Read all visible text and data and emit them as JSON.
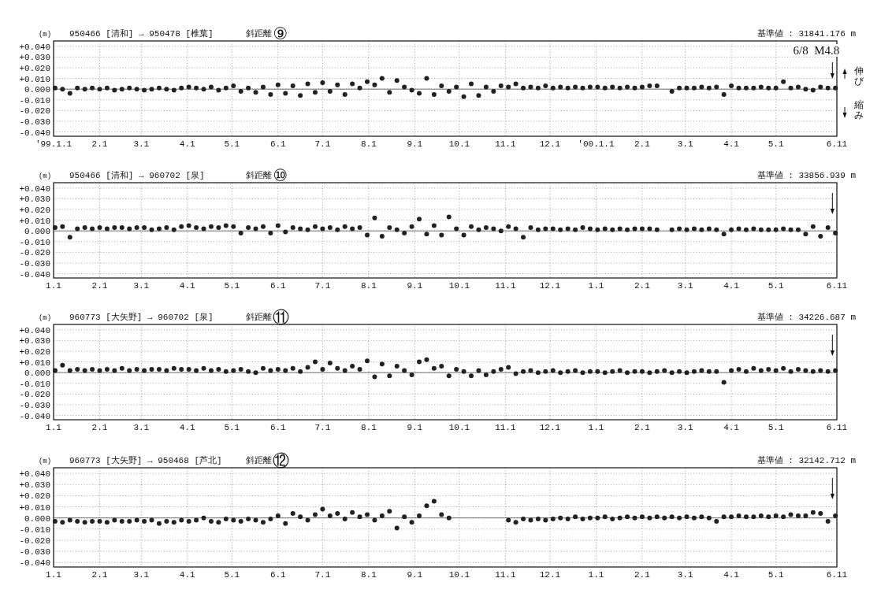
{
  "chart_data": [
    {
      "type": "scatter",
      "title": "950466 [清和] → 950478 [椎葉]",
      "subtitle": "斜距離",
      "ylabel": "(m)",
      "annotations": [
        "⑨",
        "基準値 : 31841.176 m",
        "伸び",
        "縮み"
      ],
      "x": [
        "1999-01-02",
        "1999-01-07",
        "1999-01-12",
        "1999-01-17",
        "1999-01-22",
        "1999-01-27",
        "1999-02-01",
        "1999-02-06",
        "1999-02-11",
        "1999-02-16",
        "1999-02-21",
        "1999-02-26",
        "1999-03-03",
        "1999-03-08",
        "1999-03-13",
        "1999-03-18",
        "1999-03-23",
        "1999-03-28",
        "1999-04-02",
        "1999-04-07",
        "1999-04-12",
        "1999-04-17",
        "1999-04-22",
        "1999-04-27",
        "1999-05-02",
        "1999-05-07",
        "1999-05-12",
        "1999-05-17",
        "1999-05-22",
        "1999-05-27",
        "1999-06-01",
        "1999-06-06",
        "1999-06-11",
        "1999-06-16",
        "1999-06-21",
        "1999-06-26",
        "1999-07-01",
        "1999-07-06",
        "1999-07-11",
        "1999-07-16",
        "1999-07-21",
        "1999-07-26",
        "1999-07-31",
        "1999-08-05",
        "1999-08-10",
        "1999-08-15",
        "1999-08-20",
        "1999-08-25",
        "1999-08-30",
        "1999-09-04",
        "1999-09-09",
        "1999-09-14",
        "1999-09-19",
        "1999-09-24",
        "1999-09-29",
        "1999-10-04",
        "1999-10-09",
        "1999-10-14",
        "1999-10-19",
        "1999-10-24",
        "1999-10-29",
        "1999-11-03",
        "1999-11-08",
        "1999-11-13",
        "1999-11-18",
        "1999-11-23",
        "1999-11-28",
        "1999-12-03",
        "1999-12-08",
        "1999-12-13",
        "1999-12-18",
        "1999-12-23",
        "1999-12-28",
        "2000-01-02",
        "2000-01-07",
        "2000-01-12",
        "2000-01-17",
        "2000-01-22",
        "2000-01-27",
        "2000-02-01",
        "2000-02-06",
        "2000-02-11",
        "2000-02-16",
        "2000-02-21",
        "2000-02-26",
        "2000-03-02",
        "2000-03-07",
        "2000-03-12",
        "2000-03-17",
        "2000-03-22",
        "2000-03-27",
        "2000-04-01",
        "2000-04-06",
        "2000-04-11",
        "2000-04-16",
        "2000-04-21",
        "2000-04-26",
        "2000-05-01",
        "2000-05-06",
        "2000-05-11",
        "2000-05-16",
        "2000-05-21",
        "2000-05-26",
        "2000-05-31",
        "2000-06-05",
        "2000-06-10"
      ],
      "values": [
        0.001,
        0.0,
        -0.004,
        0.001,
        0.0,
        0.001,
        0.0,
        0.001,
        -0.001,
        0.0,
        0.001,
        0.0,
        -0.001,
        0.0,
        0.001,
        0.0,
        -0.001,
        0.001,
        0.002,
        0.001,
        0.0,
        0.002,
        -0.001,
        0.001,
        0.003,
        -0.002,
        0.001,
        -0.003,
        0.002,
        -0.005,
        0.004,
        -0.004,
        0.003,
        -0.006,
        0.005,
        -0.003,
        0.006,
        -0.002,
        0.004,
        -0.005,
        0.005,
        0.001,
        0.007,
        0.004,
        0.01,
        -0.003,
        0.008,
        0.002,
        -0.001,
        -0.004,
        0.01,
        -0.005,
        0.003,
        -0.002,
        0.002,
        -0.007,
        0.005,
        -0.006,
        0.002,
        -0.002,
        0.003,
        0.002,
        0.005,
        0.001,
        0.002,
        0.001,
        0.003,
        0.001,
        0.002,
        0.001,
        0.002,
        0.001,
        0.002,
        0.002,
        0.001,
        0.002,
        0.001,
        0.002,
        0.001,
        0.002,
        0.003,
        0.003,
        null,
        -0.002,
        0.001,
        0.001,
        0.001,
        0.002,
        0.001,
        0.002,
        -0.005,
        0.003,
        0.001,
        0.001,
        0.001,
        0.002,
        0.001,
        0.001,
        0.007,
        0.001,
        0.002,
        0.0,
        -0.001,
        0.002,
        0.001,
        0.001
      ],
      "color": "#222222",
      "marker": "circle",
      "grid": true,
      "xlim": [
        "1999-01-01",
        "2000-06-11"
      ],
      "xticks": [
        {
          "value": "1999-01-01",
          "label": "'99.1.1"
        },
        {
          "value": "1999-02-01",
          "label": "2.1"
        },
        {
          "value": "1999-03-01",
          "label": "3.1"
        },
        {
          "value": "1999-04-01",
          "label": "4.1"
        },
        {
          "value": "1999-05-01",
          "label": "5.1"
        },
        {
          "value": "1999-06-01",
          "label": "6.1"
        },
        {
          "value": "1999-07-01",
          "label": "7.1"
        },
        {
          "value": "1999-08-01",
          "label": "8.1"
        },
        {
          "value": "1999-09-01",
          "label": "9.1"
        },
        {
          "value": "1999-10-01",
          "label": "10.1"
        },
        {
          "value": "1999-11-01",
          "label": "11.1"
        },
        {
          "value": "1999-12-01",
          "label": "12.1"
        },
        {
          "value": "2000-01-01",
          "label": "'00.1.1"
        },
        {
          "value": "2000-02-01",
          "label": "2.1"
        },
        {
          "value": "2000-03-01",
          "label": "3.1"
        },
        {
          "value": "2000-04-01",
          "label": "4.1"
        },
        {
          "value": "2000-05-01",
          "label": "5.1"
        },
        {
          "value": "2000-06-11",
          "label": "6.11"
        }
      ],
      "ylim": [
        -0.044,
        0.045
      ],
      "yticks": [
        {
          "value": 0.04,
          "label": "+0.040"
        },
        {
          "value": 0.03,
          "label": "+0.030"
        },
        {
          "value": 0.02,
          "label": "+0.020"
        },
        {
          "value": 0.01,
          "label": "+0.010"
        },
        {
          "value": 0,
          "label": "0.000"
        },
        {
          "value": -0.01,
          "label": "-0.010"
        },
        {
          "value": -0.02,
          "label": "-0.020"
        },
        {
          "value": -0.03,
          "label": "-0.030"
        },
        {
          "value": -0.04,
          "label": "-0.040"
        }
      ],
      "ref_lines": [
        {
          "axis": "y",
          "value": 0
        },
        {
          "axis": "x",
          "value": "2000-06-08",
          "label": "6/8  M4.8"
        }
      ]
    },
    {
      "type": "scatter",
      "title": "950466 [清和] → 960702 [泉]",
      "subtitle": "斜距離",
      "ylabel": "(m)",
      "annotations": [
        "⑩",
        "基準値 : 33856.939 m"
      ],
      "x": [
        "1999-01-02",
        "1999-01-07",
        "1999-01-12",
        "1999-01-17",
        "1999-01-22",
        "1999-01-27",
        "1999-02-01",
        "1999-02-06",
        "1999-02-11",
        "1999-02-16",
        "1999-02-21",
        "1999-02-26",
        "1999-03-03",
        "1999-03-08",
        "1999-03-13",
        "1999-03-18",
        "1999-03-23",
        "1999-03-28",
        "1999-04-02",
        "1999-04-07",
        "1999-04-12",
        "1999-04-17",
        "1999-04-22",
        "1999-04-27",
        "1999-05-02",
        "1999-05-07",
        "1999-05-12",
        "1999-05-17",
        "1999-05-22",
        "1999-05-27",
        "1999-06-01",
        "1999-06-06",
        "1999-06-11",
        "1999-06-16",
        "1999-06-21",
        "1999-06-26",
        "1999-07-01",
        "1999-07-06",
        "1999-07-11",
        "1999-07-16",
        "1999-07-21",
        "1999-07-26",
        "1999-07-31",
        "1999-08-05",
        "1999-08-10",
        "1999-08-15",
        "1999-08-20",
        "1999-08-25",
        "1999-08-30",
        "1999-09-04",
        "1999-09-09",
        "1999-09-14",
        "1999-09-19",
        "1999-09-24",
        "1999-09-29",
        "1999-10-04",
        "1999-10-09",
        "1999-10-14",
        "1999-10-19",
        "1999-10-24",
        "1999-10-29",
        "1999-11-03",
        "1999-11-08",
        "1999-11-13",
        "1999-11-18",
        "1999-11-23",
        "1999-11-28",
        "1999-12-03",
        "1999-12-08",
        "1999-12-13",
        "1999-12-18",
        "1999-12-23",
        "1999-12-28",
        "2000-01-02",
        "2000-01-07",
        "2000-01-12",
        "2000-01-17",
        "2000-01-22",
        "2000-01-27",
        "2000-02-01",
        "2000-02-06",
        "2000-02-11",
        "2000-02-16",
        "2000-02-21",
        "2000-02-26",
        "2000-03-02",
        "2000-03-07",
        "2000-03-12",
        "2000-03-17",
        "2000-03-22",
        "2000-03-27",
        "2000-04-01",
        "2000-04-06",
        "2000-04-11",
        "2000-04-16",
        "2000-04-21",
        "2000-04-26",
        "2000-05-01",
        "2000-05-06",
        "2000-05-11",
        "2000-05-16",
        "2000-05-21",
        "2000-05-26",
        "2000-05-31",
        "2000-06-05",
        "2000-06-10"
      ],
      "values": [
        0.003,
        0.004,
        -0.006,
        0.002,
        0.003,
        0.002,
        0.003,
        0.002,
        0.003,
        0.003,
        0.002,
        0.003,
        0.003,
        0.001,
        0.002,
        0.003,
        0.001,
        0.004,
        0.005,
        0.003,
        0.002,
        0.004,
        0.003,
        0.005,
        0.004,
        -0.002,
        0.003,
        0.002,
        0.004,
        -0.002,
        0.005,
        -0.001,
        0.003,
        0.002,
        0.001,
        0.004,
        0.002,
        0.003,
        0.001,
        0.004,
        0.002,
        0.003,
        -0.004,
        0.012,
        -0.005,
        0.003,
        0.001,
        -0.002,
        0.004,
        0.011,
        -0.003,
        0.005,
        -0.004,
        0.013,
        0.002,
        -0.004,
        0.004,
        0.001,
        0.003,
        0.002,
        0.0,
        0.004,
        0.002,
        -0.006,
        0.003,
        0.001,
        0.002,
        0.002,
        0.001,
        0.002,
        0.001,
        0.003,
        0.002,
        0.001,
        0.002,
        0.001,
        0.002,
        0.001,
        0.002,
        0.002,
        0.002,
        0.001,
        null,
        0.001,
        0.002,
        0.001,
        0.002,
        0.001,
        0.002,
        0.001,
        -0.003,
        0.001,
        0.002,
        0.001,
        0.002,
        0.001,
        0.001,
        0.001,
        0.002,
        0.001,
        0.001,
        -0.003,
        0.004,
        -0.005,
        0.003,
        -0.002
      ],
      "color": "#222222",
      "marker": "circle",
      "grid": true,
      "xlim": [
        "1999-01-01",
        "2000-06-11"
      ],
      "xticks": [
        {
          "value": "1999-01-01",
          "label": "1.1"
        },
        {
          "value": "1999-02-01",
          "label": "2.1"
        },
        {
          "value": "1999-03-01",
          "label": "3.1"
        },
        {
          "value": "1999-04-01",
          "label": "4.1"
        },
        {
          "value": "1999-05-01",
          "label": "5.1"
        },
        {
          "value": "1999-06-01",
          "label": "6.1"
        },
        {
          "value": "1999-07-01",
          "label": "7.1"
        },
        {
          "value": "1999-08-01",
          "label": "8.1"
        },
        {
          "value": "1999-09-01",
          "label": "9.1"
        },
        {
          "value": "1999-10-01",
          "label": "10.1"
        },
        {
          "value": "1999-11-01",
          "label": "11.1"
        },
        {
          "value": "1999-12-01",
          "label": "12.1"
        },
        {
          "value": "2000-01-01",
          "label": "1.1"
        },
        {
          "value": "2000-02-01",
          "label": "2.1"
        },
        {
          "value": "2000-03-01",
          "label": "3.1"
        },
        {
          "value": "2000-04-01",
          "label": "4.1"
        },
        {
          "value": "2000-05-01",
          "label": "5.1"
        },
        {
          "value": "2000-06-11",
          "label": "6.11"
        }
      ],
      "ylim": [
        -0.044,
        0.045
      ],
      "yticks": [
        {
          "value": 0.04,
          "label": "+0.040"
        },
        {
          "value": 0.03,
          "label": "+0.030"
        },
        {
          "value": 0.02,
          "label": "+0.020"
        },
        {
          "value": 0.01,
          "label": "+0.010"
        },
        {
          "value": 0,
          "label": "0.000"
        },
        {
          "value": -0.01,
          "label": "-0.010"
        },
        {
          "value": -0.02,
          "label": "-0.020"
        },
        {
          "value": -0.03,
          "label": "-0.030"
        },
        {
          "value": -0.04,
          "label": "-0.040"
        }
      ],
      "ref_lines": [
        {
          "axis": "y",
          "value": 0
        },
        {
          "axis": "x",
          "value": "2000-06-08"
        }
      ]
    },
    {
      "type": "scatter",
      "title": "960773 [大矢野] → 960702 [泉]",
      "subtitle": "斜距離",
      "ylabel": "(m)",
      "annotations": [
        "⑪",
        "基準値 : 34226.687 m"
      ],
      "x": [
        "1999-01-02",
        "1999-01-07",
        "1999-01-12",
        "1999-01-17",
        "1999-01-22",
        "1999-01-27",
        "1999-02-01",
        "1999-02-06",
        "1999-02-11",
        "1999-02-16",
        "1999-02-21",
        "1999-02-26",
        "1999-03-03",
        "1999-03-08",
        "1999-03-13",
        "1999-03-18",
        "1999-03-23",
        "1999-03-28",
        "1999-04-02",
        "1999-04-07",
        "1999-04-12",
        "1999-04-17",
        "1999-04-22",
        "1999-04-27",
        "1999-05-02",
        "1999-05-07",
        "1999-05-12",
        "1999-05-17",
        "1999-05-22",
        "1999-05-27",
        "1999-06-01",
        "1999-06-06",
        "1999-06-11",
        "1999-06-16",
        "1999-06-21",
        "1999-06-26",
        "1999-07-01",
        "1999-07-06",
        "1999-07-11",
        "1999-07-16",
        "1999-07-21",
        "1999-07-26",
        "1999-07-31",
        "1999-08-05",
        "1999-08-10",
        "1999-08-15",
        "1999-08-20",
        "1999-08-25",
        "1999-08-30",
        "1999-09-04",
        "1999-09-09",
        "1999-09-14",
        "1999-09-19",
        "1999-09-24",
        "1999-09-29",
        "1999-10-04",
        "1999-10-09",
        "1999-10-14",
        "1999-10-19",
        "1999-10-24",
        "1999-10-29",
        "1999-11-03",
        "1999-11-08",
        "1999-11-13",
        "1999-11-18",
        "1999-11-23",
        "1999-11-28",
        "1999-12-03",
        "1999-12-08",
        "1999-12-13",
        "1999-12-18",
        "1999-12-23",
        "1999-12-28",
        "2000-01-02",
        "2000-01-07",
        "2000-01-12",
        "2000-01-17",
        "2000-01-22",
        "2000-01-27",
        "2000-02-01",
        "2000-02-06",
        "2000-02-11",
        "2000-02-16",
        "2000-02-21",
        "2000-02-26",
        "2000-03-02",
        "2000-03-07",
        "2000-03-12",
        "2000-03-17",
        "2000-03-22",
        "2000-03-27",
        "2000-04-01",
        "2000-04-06",
        "2000-04-11",
        "2000-04-16",
        "2000-04-21",
        "2000-04-26",
        "2000-05-01",
        "2000-05-06",
        "2000-05-11",
        "2000-05-16",
        "2000-05-21",
        "2000-05-26",
        "2000-05-31",
        "2000-06-05",
        "2000-06-10"
      ],
      "values": [
        0.002,
        0.007,
        0.002,
        0.003,
        0.002,
        0.003,
        0.002,
        0.003,
        0.002,
        0.004,
        0.002,
        0.003,
        0.002,
        0.003,
        0.003,
        0.002,
        0.004,
        0.003,
        0.003,
        0.002,
        0.004,
        0.002,
        0.003,
        0.001,
        0.002,
        0.003,
        0.001,
        0.0,
        0.004,
        0.002,
        0.003,
        0.002,
        0.004,
        0.001,
        0.005,
        0.01,
        0.003,
        0.009,
        0.004,
        0.002,
        0.006,
        0.003,
        0.011,
        -0.004,
        0.008,
        -0.003,
        0.006,
        0.002,
        -0.002,
        0.01,
        0.012,
        0.004,
        0.006,
        -0.003,
        0.003,
        0.001,
        -0.003,
        0.002,
        -0.002,
        0.001,
        0.003,
        0.005,
        -0.001,
        0.001,
        0.002,
        0.0,
        0.001,
        0.002,
        0.0,
        0.001,
        0.002,
        0.0,
        0.001,
        0.001,
        0.0,
        0.001,
        0.002,
        0.0,
        0.001,
        0.001,
        0.0,
        0.001,
        0.002,
        0.0,
        0.001,
        0.0,
        0.001,
        0.002,
        0.001,
        0.001,
        -0.009,
        0.002,
        0.003,
        0.001,
        0.004,
        0.002,
        0.003,
        0.002,
        0.004,
        0.001,
        0.003,
        0.002,
        0.001,
        0.002,
        0.001,
        0.002
      ],
      "color": "#222222",
      "marker": "circle",
      "grid": true,
      "xlim": [
        "1999-01-01",
        "2000-06-11"
      ],
      "xticks": [
        {
          "value": "1999-01-01",
          "label": "1.1"
        },
        {
          "value": "1999-02-01",
          "label": "2.1"
        },
        {
          "value": "1999-03-01",
          "label": "3.1"
        },
        {
          "value": "1999-04-01",
          "label": "4.1"
        },
        {
          "value": "1999-05-01",
          "label": "5.1"
        },
        {
          "value": "1999-06-01",
          "label": "6.1"
        },
        {
          "value": "1999-07-01",
          "label": "7.1"
        },
        {
          "value": "1999-08-01",
          "label": "8.1"
        },
        {
          "value": "1999-09-01",
          "label": "9.1"
        },
        {
          "value": "1999-10-01",
          "label": "10.1"
        },
        {
          "value": "1999-11-01",
          "label": "11.1"
        },
        {
          "value": "1999-12-01",
          "label": "12.1"
        },
        {
          "value": "2000-01-01",
          "label": "1.1"
        },
        {
          "value": "2000-02-01",
          "label": "2.1"
        },
        {
          "value": "2000-03-01",
          "label": "3.1"
        },
        {
          "value": "2000-04-01",
          "label": "4.1"
        },
        {
          "value": "2000-05-01",
          "label": "5.1"
        },
        {
          "value": "2000-06-11",
          "label": "6.11"
        }
      ],
      "ylim": [
        -0.044,
        0.045
      ],
      "yticks": [
        {
          "value": 0.04,
          "label": "+0.040"
        },
        {
          "value": 0.03,
          "label": "+0.030"
        },
        {
          "value": 0.02,
          "label": "+0.020"
        },
        {
          "value": 0.01,
          "label": "+0.010"
        },
        {
          "value": 0,
          "label": "0.000"
        },
        {
          "value": -0.01,
          "label": "-0.010"
        },
        {
          "value": -0.02,
          "label": "-0.020"
        },
        {
          "value": -0.03,
          "label": "-0.030"
        },
        {
          "value": -0.04,
          "label": "-0.040"
        }
      ],
      "ref_lines": [
        {
          "axis": "y",
          "value": 0
        },
        {
          "axis": "x",
          "value": "2000-06-08"
        }
      ]
    },
    {
      "type": "scatter",
      "title": "960773 [大矢野] → 950468 [芦北]",
      "subtitle": "斜距離",
      "ylabel": "(m)",
      "annotations": [
        "⑫",
        "基準値 : 32142.712 m"
      ],
      "x": [
        "1999-01-02",
        "1999-01-07",
        "1999-01-12",
        "1999-01-17",
        "1999-01-22",
        "1999-01-27",
        "1999-02-01",
        "1999-02-06",
        "1999-02-11",
        "1999-02-16",
        "1999-02-21",
        "1999-02-26",
        "1999-03-03",
        "1999-03-08",
        "1999-03-13",
        "1999-03-18",
        "1999-03-23",
        "1999-03-28",
        "1999-04-02",
        "1999-04-07",
        "1999-04-12",
        "1999-04-17",
        "1999-04-22",
        "1999-04-27",
        "1999-05-02",
        "1999-05-07",
        "1999-05-12",
        "1999-05-17",
        "1999-05-22",
        "1999-05-27",
        "1999-06-01",
        "1999-06-06",
        "1999-06-11",
        "1999-06-16",
        "1999-06-21",
        "1999-06-26",
        "1999-07-01",
        "1999-07-06",
        "1999-07-11",
        "1999-07-16",
        "1999-07-21",
        "1999-07-26",
        "1999-07-31",
        "1999-08-05",
        "1999-08-10",
        "1999-08-15",
        "1999-08-20",
        "1999-08-25",
        "1999-08-30",
        "1999-09-04",
        "1999-09-09",
        "1999-09-14",
        "1999-09-19",
        "1999-09-24",
        "1999-09-29",
        "1999-10-04",
        "1999-10-09",
        "1999-10-14",
        "1999-10-19",
        "1999-10-24",
        "1999-10-29",
        "1999-11-03",
        "1999-11-08",
        "1999-11-13",
        "1999-11-18",
        "1999-11-23",
        "1999-11-28",
        "1999-12-03",
        "1999-12-08",
        "1999-12-13",
        "1999-12-18",
        "1999-12-23",
        "1999-12-28",
        "2000-01-02",
        "2000-01-07",
        "2000-01-12",
        "2000-01-17",
        "2000-01-22",
        "2000-01-27",
        "2000-02-01",
        "2000-02-06",
        "2000-02-11",
        "2000-02-16",
        "2000-02-21",
        "2000-02-26",
        "2000-03-02",
        "2000-03-07",
        "2000-03-12",
        "2000-03-17",
        "2000-03-22",
        "2000-03-27",
        "2000-04-01",
        "2000-04-06",
        "2000-04-11",
        "2000-04-16",
        "2000-04-21",
        "2000-04-26",
        "2000-05-01",
        "2000-05-06",
        "2000-05-11",
        "2000-05-16",
        "2000-05-21",
        "2000-05-26",
        "2000-05-31",
        "2000-06-05",
        "2000-06-10"
      ],
      "values": [
        -0.003,
        -0.004,
        -0.002,
        -0.003,
        -0.004,
        -0.003,
        -0.003,
        -0.004,
        -0.002,
        -0.003,
        -0.003,
        -0.002,
        -0.003,
        -0.002,
        -0.005,
        -0.003,
        -0.004,
        -0.002,
        -0.003,
        -0.002,
        0.0,
        -0.003,
        -0.004,
        -0.001,
        -0.002,
        -0.003,
        -0.001,
        -0.002,
        -0.004,
        -0.001,
        0.002,
        -0.005,
        0.004,
        0.001,
        -0.002,
        0.003,
        0.008,
        0.002,
        0.004,
        -0.001,
        0.005,
        0.001,
        0.003,
        -0.002,
        0.002,
        0.006,
        -0.009,
        0.001,
        -0.004,
        0.002,
        0.011,
        0.015,
        0.003,
        0.0,
        null,
        null,
        null,
        null,
        null,
        null,
        null,
        -0.002,
        -0.004,
        -0.001,
        -0.002,
        -0.001,
        -0.002,
        -0.001,
        0.0,
        -0.001,
        0.001,
        -0.001,
        0.0,
        0.0,
        0.001,
        -0.001,
        0.0,
        0.001,
        0.0,
        0.001,
        0.0,
        0.001,
        0.0,
        0.001,
        0.0,
        0.001,
        0.0,
        0.001,
        0.0,
        -0.003,
        0.001,
        0.001,
        0.002,
        0.001,
        0.001,
        0.002,
        0.001,
        0.002,
        0.001,
        0.003,
        0.002,
        0.002,
        0.005,
        0.004,
        -0.003,
        0.002
      ],
      "color": "#222222",
      "marker": "circle",
      "grid": true,
      "xlim": [
        "1999-01-01",
        "2000-06-11"
      ],
      "xticks": [
        {
          "value": "1999-01-01",
          "label": "1.1"
        },
        {
          "value": "1999-02-01",
          "label": "2.1"
        },
        {
          "value": "1999-03-01",
          "label": "3.1"
        },
        {
          "value": "1999-04-01",
          "label": "4.1"
        },
        {
          "value": "1999-05-01",
          "label": "5.1"
        },
        {
          "value": "1999-06-01",
          "label": "6.1"
        },
        {
          "value": "1999-07-01",
          "label": "7.1"
        },
        {
          "value": "1999-08-01",
          "label": "8.1"
        },
        {
          "value": "1999-09-01",
          "label": "9.1"
        },
        {
          "value": "1999-10-01",
          "label": "10.1"
        },
        {
          "value": "1999-11-01",
          "label": "11.1"
        },
        {
          "value": "1999-12-01",
          "label": "12.1"
        },
        {
          "value": "2000-01-01",
          "label": "1.1"
        },
        {
          "value": "2000-02-01",
          "label": "2.1"
        },
        {
          "value": "2000-03-01",
          "label": "3.1"
        },
        {
          "value": "2000-04-01",
          "label": "4.1"
        },
        {
          "value": "2000-05-01",
          "label": "5.1"
        },
        {
          "value": "2000-06-11",
          "label": "6.11"
        }
      ],
      "ylim": [
        -0.044,
        0.045
      ],
      "yticks": [
        {
          "value": 0.04,
          "label": "+0.040"
        },
        {
          "value": 0.03,
          "label": "+0.030"
        },
        {
          "value": 0.02,
          "label": "+0.020"
        },
        {
          "value": 0.01,
          "label": "+0.010"
        },
        {
          "value": 0,
          "label": "0.000"
        },
        {
          "value": -0.01,
          "label": "-0.010"
        },
        {
          "value": -0.02,
          "label": "-0.020"
        },
        {
          "value": -0.03,
          "label": "-0.030"
        },
        {
          "value": -0.04,
          "label": "-0.040"
        }
      ],
      "ref_lines": [
        {
          "axis": "y",
          "value": 0
        },
        {
          "axis": "x",
          "value": "2000-06-08"
        }
      ]
    }
  ]
}
